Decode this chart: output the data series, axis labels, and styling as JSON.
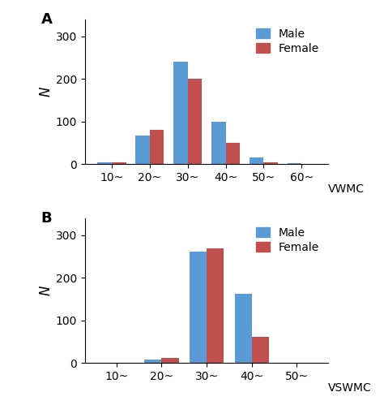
{
  "panel_A": {
    "title": "A",
    "ylabel": "N",
    "xlabel_label": "VWMC",
    "categories": [
      "10~",
      "20~",
      "30~",
      "40~",
      "50~",
      "60~"
    ],
    "male_values": [
      5,
      67,
      240,
      100,
      15,
      2
    ],
    "female_values": [
      5,
      80,
      200,
      50,
      5,
      0
    ],
    "ylim": [
      0,
      340
    ],
    "yticks": [
      0,
      100,
      200,
      300
    ]
  },
  "panel_B": {
    "title": "B",
    "ylabel": "N",
    "xlabel_label": "VSWMC",
    "categories": [
      "10~",
      "20~",
      "30~",
      "40~",
      "50~"
    ],
    "male_values": [
      0,
      8,
      262,
      163,
      0
    ],
    "female_values": [
      0,
      12,
      268,
      62,
      0
    ],
    "ylim": [
      0,
      340
    ],
    "yticks": [
      0,
      100,
      200,
      300
    ]
  },
  "male_color": "#5B9BD5",
  "female_color": "#C0504D",
  "bar_width": 0.38,
  "legend_labels": [
    "Male",
    "Female"
  ],
  "background_color": "#FFFFFF",
  "label_fontsize": 12,
  "tick_fontsize": 10,
  "title_fontsize": 13
}
